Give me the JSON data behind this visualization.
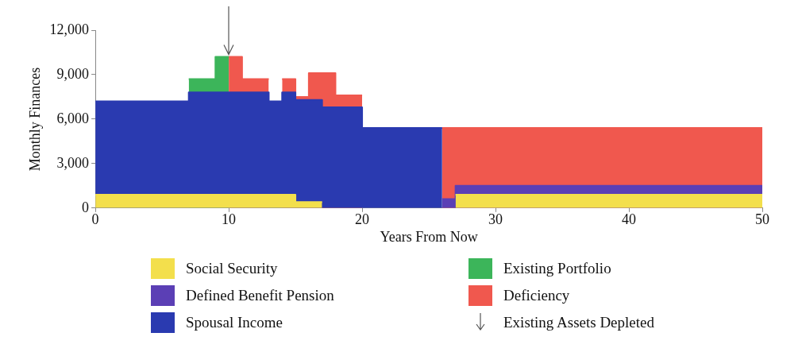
{
  "chart_data": {
    "type": "area",
    "stacked": true,
    "xlabel": "Years From Now",
    "ylabel": "Monthly Finances",
    "x": [
      0,
      7,
      7,
      9,
      9,
      10,
      10,
      11,
      11,
      13,
      13,
      14,
      14,
      15,
      15,
      16,
      16,
      17,
      17,
      18,
      18,
      20,
      20,
      26,
      26,
      27,
      27,
      50
    ],
    "series": [
      {
        "name": "Social Security",
        "color": "#f3df4c",
        "values": [
          900,
          900,
          900,
          900,
          900,
          900,
          900,
          900,
          900,
          900,
          900,
          900,
          900,
          900,
          400,
          400,
          400,
          400,
          null,
          null,
          null,
          null,
          null,
          null,
          null,
          null,
          900,
          900
        ]
      },
      {
        "name": "Defined Benefit Pension",
        "color": "#5b3fb5",
        "values": [
          null,
          null,
          null,
          null,
          null,
          null,
          null,
          null,
          null,
          null,
          null,
          null,
          null,
          null,
          null,
          null,
          null,
          null,
          null,
          null,
          null,
          null,
          null,
          null,
          600,
          600,
          600,
          600
        ]
      },
      {
        "name": "Spousal Income",
        "color": "#2a3ab0",
        "values": [
          6300,
          6300,
          6900,
          6900,
          6900,
          6900,
          6900,
          6900,
          6900,
          6900,
          6300,
          6300,
          6900,
          6900,
          6900,
          6900,
          6900,
          6900,
          6800,
          6800,
          6800,
          6800,
          5400,
          5400,
          null,
          null,
          null,
          null
        ]
      },
      {
        "name": "Existing Portfolio",
        "color": "#3cb55a",
        "values": [
          null,
          null,
          900,
          900,
          2400,
          2400,
          null,
          null,
          null,
          null,
          null,
          null,
          null,
          null,
          null,
          null,
          null,
          null,
          null,
          null,
          null,
          null,
          null,
          null,
          null,
          null,
          null,
          null
        ]
      },
      {
        "name": "Deficiency",
        "color": "#f0584e",
        "values": [
          null,
          null,
          null,
          null,
          null,
          null,
          2400,
          2400,
          900,
          900,
          null,
          null,
          900,
          900,
          200,
          200,
          1800,
          1800,
          2300,
          2300,
          800,
          800,
          null,
          null,
          4800,
          4800,
          3900,
          3900
        ]
      }
    ],
    "ref_lines": [
      {
        "axis": "x",
        "value": 10,
        "label": "Existing Assets Depleted",
        "color": "#555555"
      }
    ],
    "xlim": [
      0,
      50
    ],
    "xticks": [
      0,
      10,
      20,
      30,
      40,
      50
    ],
    "ylim": [
      0,
      12000
    ],
    "yticks": [
      0,
      {
        "value": 3000,
        "label": "3,000"
      },
      {
        "value": 6000,
        "label": "6,000"
      },
      {
        "value": 9000,
        "label": "9,000"
      },
      {
        "value": 12000,
        "label": "12,000"
      }
    ],
    "grid": false,
    "legend": "bottom"
  }
}
